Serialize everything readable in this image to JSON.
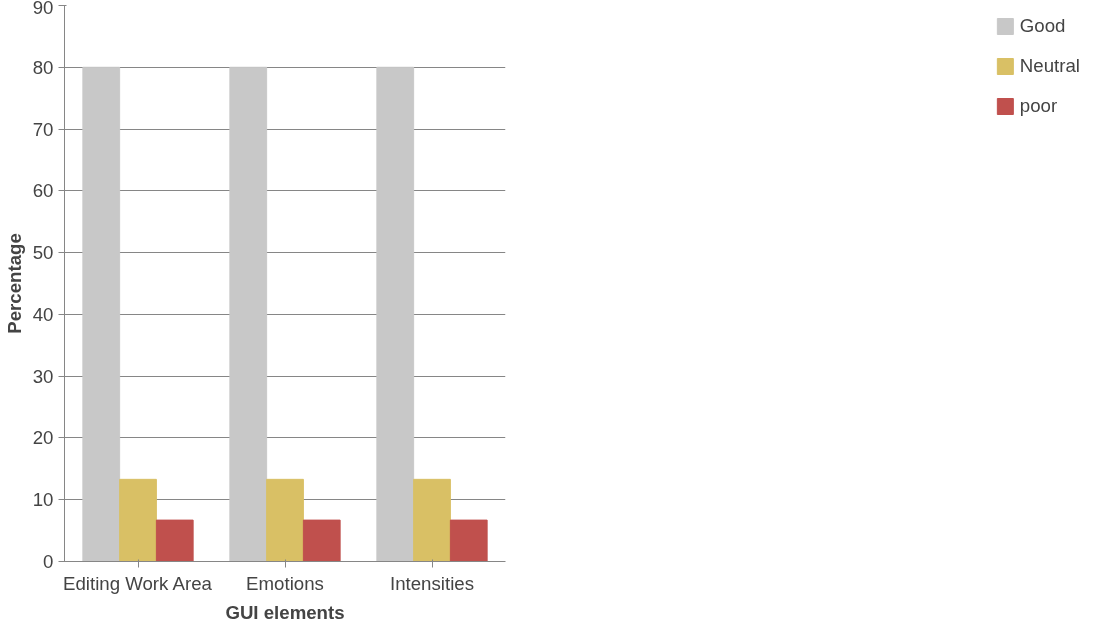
{
  "chart_data": {
    "type": "bar",
    "xlabel": "GUI elements",
    "ylabel": "Percentage",
    "categories": [
      "Editing Work Area",
      "Emotions",
      "Intensities"
    ],
    "series": [
      {
        "name": "Good",
        "color": "#c8c8c8",
        "values": [
          80,
          80,
          80
        ]
      },
      {
        "name": "Neutral",
        "color": "#d9c065",
        "values": [
          13.3,
          13.3,
          13.3
        ]
      },
      {
        "name": "poor",
        "color": "#c0504d",
        "values": [
          6.7,
          6.7,
          6.7
        ]
      }
    ],
    "ylim": [
      0,
      90
    ],
    "yticks": [
      0,
      10,
      20,
      30,
      40,
      50,
      60,
      70,
      80,
      90
    ],
    "grid": "y",
    "legend": "right"
  }
}
